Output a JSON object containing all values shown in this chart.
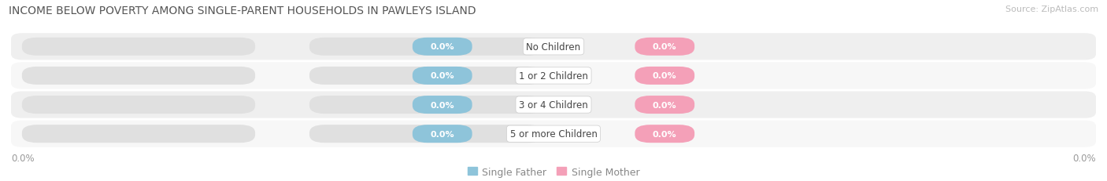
{
  "title": "INCOME BELOW POVERTY AMONG SINGLE-PARENT HOUSEHOLDS IN PAWLEYS ISLAND",
  "source_text": "Source: ZipAtlas.com",
  "categories": [
    "No Children",
    "1 or 2 Children",
    "3 or 4 Children",
    "5 or more Children"
  ],
  "single_father_values": [
    0.0,
    0.0,
    0.0,
    0.0
  ],
  "single_mother_values": [
    0.0,
    0.0,
    0.0,
    0.0
  ],
  "father_color": "#8ec4da",
  "mother_color": "#f4a0b8",
  "bar_bg_color": "#e0e0e0",
  "row_bg_colors": [
    "#efefef",
    "#f7f7f7"
  ],
  "title_fontsize": 10,
  "source_fontsize": 8,
  "value_fontsize": 8,
  "category_fontsize": 8.5,
  "legend_fontsize": 9,
  "tick_fontsize": 8.5,
  "axis_label_left": "0.0%",
  "axis_label_right": "0.0%",
  "figsize": [
    14.06,
    2.32
  ],
  "dpi": 100
}
